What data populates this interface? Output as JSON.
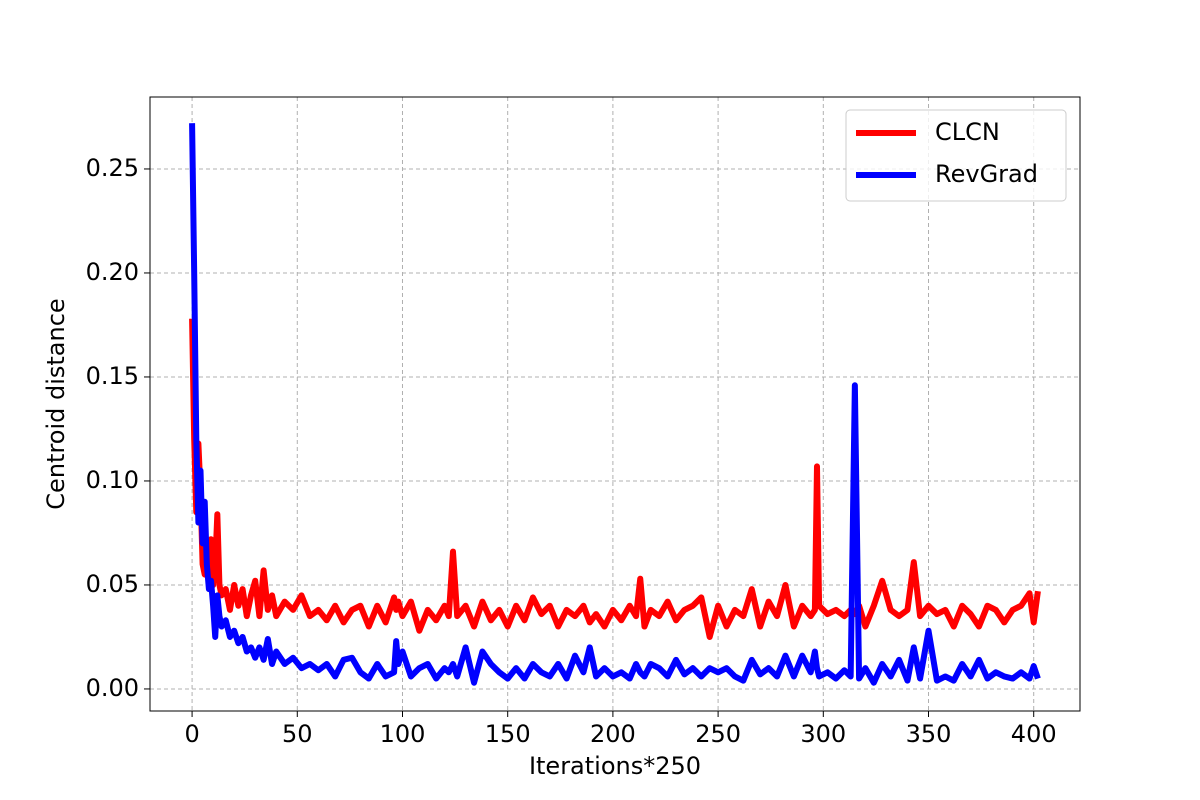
{
  "chart_data": {
    "type": "line",
    "x_label": "Iterations*250",
    "y_label": "Centroid distance",
    "x": [
      0,
      1,
      2,
      3,
      4,
      5,
      6,
      7,
      8,
      9,
      10,
      11,
      12,
      13,
      14,
      16,
      18,
      20,
      22,
      24,
      26,
      28,
      30,
      32,
      34,
      36,
      38,
      40,
      44,
      48,
      52,
      56,
      60,
      64,
      68,
      72,
      76,
      80,
      84,
      88,
      92,
      96,
      97,
      98,
      100,
      104,
      108,
      112,
      116,
      120,
      122,
      124,
      126,
      130,
      134,
      138,
      142,
      146,
      150,
      154,
      158,
      162,
      166,
      170,
      174,
      178,
      182,
      186,
      189,
      192,
      196,
      200,
      204,
      208,
      211,
      213,
      215,
      218,
      222,
      226,
      230,
      234,
      238,
      242,
      246,
      250,
      254,
      258,
      262,
      266,
      270,
      274,
      278,
      282,
      286,
      290,
      294,
      296,
      297,
      298,
      302,
      306,
      310,
      313,
      315,
      317,
      320,
      324,
      328,
      332,
      336,
      340,
      343,
      346,
      350,
      354,
      358,
      362,
      366,
      370,
      374,
      378,
      382,
      386,
      390,
      394,
      398,
      400,
      402
    ],
    "series": [
      {
        "name": "CLCN",
        "color": "#ff0000",
        "values": [
          0.178,
          0.12,
          0.085,
          0.118,
          0.095,
          0.06,
          0.055,
          0.07,
          0.058,
          0.072,
          0.05,
          0.06,
          0.084,
          0.05,
          0.045,
          0.048,
          0.038,
          0.05,
          0.04,
          0.048,
          0.035,
          0.045,
          0.052,
          0.035,
          0.057,
          0.038,
          0.045,
          0.035,
          0.042,
          0.038,
          0.045,
          0.035,
          0.038,
          0.033,
          0.04,
          0.032,
          0.038,
          0.04,
          0.03,
          0.04,
          0.032,
          0.044,
          0.038,
          0.042,
          0.035,
          0.042,
          0.028,
          0.038,
          0.033,
          0.04,
          0.035,
          0.066,
          0.035,
          0.04,
          0.03,
          0.042,
          0.033,
          0.038,
          0.03,
          0.04,
          0.033,
          0.044,
          0.036,
          0.04,
          0.03,
          0.038,
          0.035,
          0.04,
          0.032,
          0.036,
          0.03,
          0.038,
          0.033,
          0.04,
          0.035,
          0.053,
          0.03,
          0.038,
          0.035,
          0.042,
          0.033,
          0.038,
          0.04,
          0.044,
          0.025,
          0.04,
          0.03,
          0.038,
          0.035,
          0.048,
          0.03,
          0.042,
          0.035,
          0.05,
          0.03,
          0.04,
          0.035,
          0.038,
          0.107,
          0.04,
          0.036,
          0.038,
          0.035,
          0.038,
          0.036,
          0.04,
          0.03,
          0.04,
          0.052,
          0.038,
          0.035,
          0.038,
          0.061,
          0.035,
          0.04,
          0.036,
          0.038,
          0.03,
          0.04,
          0.036,
          0.03,
          0.04,
          0.038,
          0.032,
          0.038,
          0.04,
          0.046,
          0.032,
          0.047
        ]
      },
      {
        "name": "RevGrad",
        "color": "#0000ff",
        "values": [
          0.272,
          0.2,
          0.12,
          0.08,
          0.105,
          0.07,
          0.09,
          0.06,
          0.048,
          0.052,
          0.04,
          0.025,
          0.045,
          0.035,
          0.03,
          0.033,
          0.025,
          0.028,
          0.022,
          0.025,
          0.018,
          0.02,
          0.015,
          0.02,
          0.014,
          0.024,
          0.012,
          0.018,
          0.012,
          0.015,
          0.01,
          0.012,
          0.009,
          0.012,
          0.006,
          0.014,
          0.015,
          0.008,
          0.005,
          0.012,
          0.006,
          0.008,
          0.023,
          0.012,
          0.018,
          0.006,
          0.01,
          0.012,
          0.005,
          0.01,
          0.008,
          0.012,
          0.006,
          0.02,
          0.003,
          0.018,
          0.012,
          0.008,
          0.005,
          0.01,
          0.005,
          0.012,
          0.008,
          0.006,
          0.012,
          0.005,
          0.016,
          0.008,
          0.02,
          0.006,
          0.01,
          0.006,
          0.008,
          0.005,
          0.012,
          0.008,
          0.006,
          0.012,
          0.01,
          0.006,
          0.014,
          0.007,
          0.01,
          0.006,
          0.01,
          0.008,
          0.01,
          0.006,
          0.004,
          0.014,
          0.007,
          0.01,
          0.006,
          0.016,
          0.006,
          0.016,
          0.008,
          0.018,
          0.01,
          0.006,
          0.008,
          0.005,
          0.009,
          0.006,
          0.146,
          0.005,
          0.01,
          0.003,
          0.012,
          0.006,
          0.014,
          0.004,
          0.02,
          0.005,
          0.028,
          0.004,
          0.006,
          0.004,
          0.012,
          0.006,
          0.014,
          0.005,
          0.008,
          0.006,
          0.005,
          0.008,
          0.005,
          0.011,
          0.005
        ]
      }
    ],
    "xlim": [
      -20,
      422
    ],
    "ylim": [
      -0.0106,
      0.2846
    ],
    "xticks": [
      0,
      50,
      100,
      150,
      200,
      250,
      300,
      350,
      400
    ],
    "yticks": [
      {
        "value": 0,
        "label": "0.00"
      },
      0.05,
      {
        "value": 0.1,
        "label": "0.10"
      },
      0.15,
      {
        "value": 0.2,
        "label": "0.20"
      },
      0.25
    ],
    "grid": true,
    "legend": "upper right"
  }
}
